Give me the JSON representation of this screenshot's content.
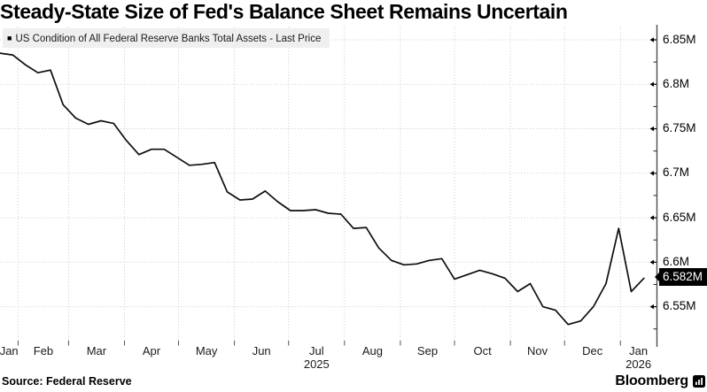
{
  "title": "Steady-State Size of Fed's Balance Sheet Remains Uncertain",
  "legend": {
    "marker": "■",
    "label": "US Condition of All Federal Reserve Banks Total Assets - Last Price"
  },
  "source": "Source:  Federal Reserve",
  "brand": "Bloomberg",
  "colors": {
    "line": "#0d0d0d",
    "gridline": "#c9c9c9",
    "axis": "#4d4d4d",
    "tick": "#000000",
    "legend_bg": "#efefef",
    "badge_bg": "#000000",
    "badge_text": "#ffffff"
  },
  "chart_data": {
    "type": "line",
    "title": "Steady-State Size of Fed's Balance Sheet Remains Uncertain",
    "unit": "M",
    "grid": true,
    "legend_position": "top-left",
    "ylim": [
      6.51,
      6.865
    ],
    "yticks": {
      "values": [
        6.85,
        6.8,
        6.75,
        6.7,
        6.65,
        6.6,
        6.55
      ],
      "labels": [
        "6.85M",
        "6.8M",
        "6.75M",
        "6.7M",
        "6.65M",
        "6.6M",
        "6.55M"
      ],
      "minor": [
        6.825,
        6.775,
        6.725,
        6.675,
        6.625,
        6.575,
        6.525
      ]
    },
    "xticks": {
      "months": [
        {
          "label": "Jan"
        },
        {
          "label": "Feb"
        },
        {
          "label": "Mar"
        },
        {
          "label": "Apr"
        },
        {
          "label": "May"
        },
        {
          "label": "Jun"
        },
        {
          "label": "Jul",
          "year": "2025"
        },
        {
          "label": "Aug"
        },
        {
          "label": "Sep"
        },
        {
          "label": "Oct"
        },
        {
          "label": "Nov"
        },
        {
          "label": "Dec"
        },
        {
          "label": "Jan",
          "year": "2026"
        }
      ]
    },
    "last_price": {
      "value": 6.582,
      "label": "6.582M"
    },
    "series": [
      {
        "name": "US Condition of All Federal Reserve Banks Total Assets - Last Price",
        "cadence": "weekly",
        "points": [
          [
            "2025-01-22",
            6.835
          ],
          [
            "2025-01-29",
            6.833
          ],
          [
            "2025-02-05",
            6.822
          ],
          [
            "2025-02-12",
            6.813
          ],
          [
            "2025-02-19",
            6.816
          ],
          [
            "2025-02-26",
            6.777
          ],
          [
            "2025-03-05",
            6.762
          ],
          [
            "2025-03-12",
            6.755
          ],
          [
            "2025-03-19",
            6.759
          ],
          [
            "2025-03-26",
            6.756
          ],
          [
            "2025-04-02",
            6.737
          ],
          [
            "2025-04-09",
            6.721
          ],
          [
            "2025-04-16",
            6.727
          ],
          [
            "2025-04-23",
            6.727
          ],
          [
            "2025-04-30",
            6.718
          ],
          [
            "2025-05-07",
            6.709
          ],
          [
            "2025-05-14",
            6.71
          ],
          [
            "2025-05-21",
            6.712
          ],
          [
            "2025-05-28",
            6.679
          ],
          [
            "2025-06-04",
            6.67
          ],
          [
            "2025-06-11",
            6.671
          ],
          [
            "2025-06-18",
            6.68
          ],
          [
            "2025-06-25",
            6.668
          ],
          [
            "2025-07-02",
            6.658
          ],
          [
            "2025-07-09",
            6.658
          ],
          [
            "2025-07-16",
            6.659
          ],
          [
            "2025-07-23",
            6.655
          ],
          [
            "2025-07-30",
            6.654
          ],
          [
            "2025-08-06",
            6.638
          ],
          [
            "2025-08-13",
            6.639
          ],
          [
            "2025-08-20",
            6.616
          ],
          [
            "2025-08-27",
            6.602
          ],
          [
            "2025-09-03",
            6.597
          ],
          [
            "2025-09-10",
            6.598
          ],
          [
            "2025-09-17",
            6.602
          ],
          [
            "2025-09-24",
            6.604
          ],
          [
            "2025-10-01",
            6.581
          ],
          [
            "2025-10-08",
            6.586
          ],
          [
            "2025-10-15",
            6.591
          ],
          [
            "2025-10-22",
            6.587
          ],
          [
            "2025-10-29",
            6.582
          ],
          [
            "2025-11-05",
            6.567
          ],
          [
            "2025-11-12",
            6.576
          ],
          [
            "2025-11-19",
            6.55
          ],
          [
            "2025-11-26",
            6.546
          ],
          [
            "2025-12-03",
            6.53
          ],
          [
            "2025-12-10",
            6.534
          ],
          [
            "2025-12-17",
            6.55
          ],
          [
            "2025-12-24",
            6.576
          ],
          [
            "2025-12-31",
            6.638
          ],
          [
            "2026-01-07",
            6.567
          ],
          [
            "2026-01-14",
            6.582
          ]
        ]
      }
    ]
  }
}
